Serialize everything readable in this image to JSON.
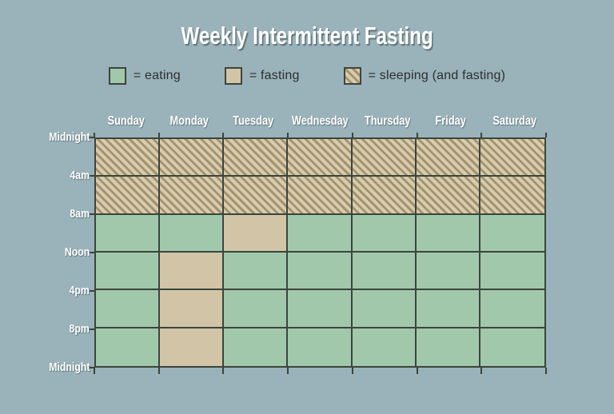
{
  "title": "Weekly Intermittent Fasting",
  "legend": {
    "items": [
      {
        "label": "= eating",
        "state": "eating"
      },
      {
        "label": "= fasting",
        "state": "fasting"
      },
      {
        "label": "= sleeping (and fasting)",
        "state": "sleeping"
      }
    ]
  },
  "colors": {
    "background": "#9AB2BA",
    "eating": "#A2C8AC",
    "fasting": "#D2C4A6",
    "sleeping_base": "#D8CCAE",
    "sleeping_stripe": "#A3936F",
    "gridline": "#3A453C",
    "label_text": "#FFFFFF",
    "legend_text": "#2C2F2C"
  },
  "chart_data": {
    "type": "heatmap",
    "title": "Weekly Intermittent Fasting",
    "x_labels": [
      "Sunday",
      "Monday",
      "Tuesday",
      "Wednesday",
      "Thursday",
      "Friday",
      "Saturday"
    ],
    "y_labels": [
      "Midnight",
      "4am",
      "8am",
      "Noon",
      "4pm",
      "8pm",
      "Midnight"
    ],
    "legend_states": [
      "eating",
      "fasting",
      "sleeping (and fasting)"
    ],
    "grid": "on",
    "legend_position": "top",
    "rows": [
      {
        "interval": "Midnight-4am",
        "cells": [
          "sleeping",
          "sleeping",
          "sleeping",
          "sleeping",
          "sleeping",
          "sleeping",
          "sleeping"
        ]
      },
      {
        "interval": "4am-8am",
        "cells": [
          "sleeping",
          "sleeping",
          "sleeping",
          "sleeping",
          "sleeping",
          "sleeping",
          "sleeping"
        ]
      },
      {
        "interval": "8am-Noon",
        "cells": [
          "eating",
          "eating",
          "fasting",
          "eating",
          "eating",
          "eating",
          "eating"
        ]
      },
      {
        "interval": "Noon-4pm",
        "cells": [
          "eating",
          "fasting",
          "eating",
          "eating",
          "eating",
          "eating",
          "eating"
        ]
      },
      {
        "interval": "4pm-8pm",
        "cells": [
          "eating",
          "fasting",
          "eating",
          "eating",
          "eating",
          "eating",
          "eating"
        ]
      },
      {
        "interval": "8pm-Midnight",
        "cells": [
          "eating",
          "fasting",
          "eating",
          "eating",
          "eating",
          "eating",
          "eating"
        ]
      }
    ]
  }
}
